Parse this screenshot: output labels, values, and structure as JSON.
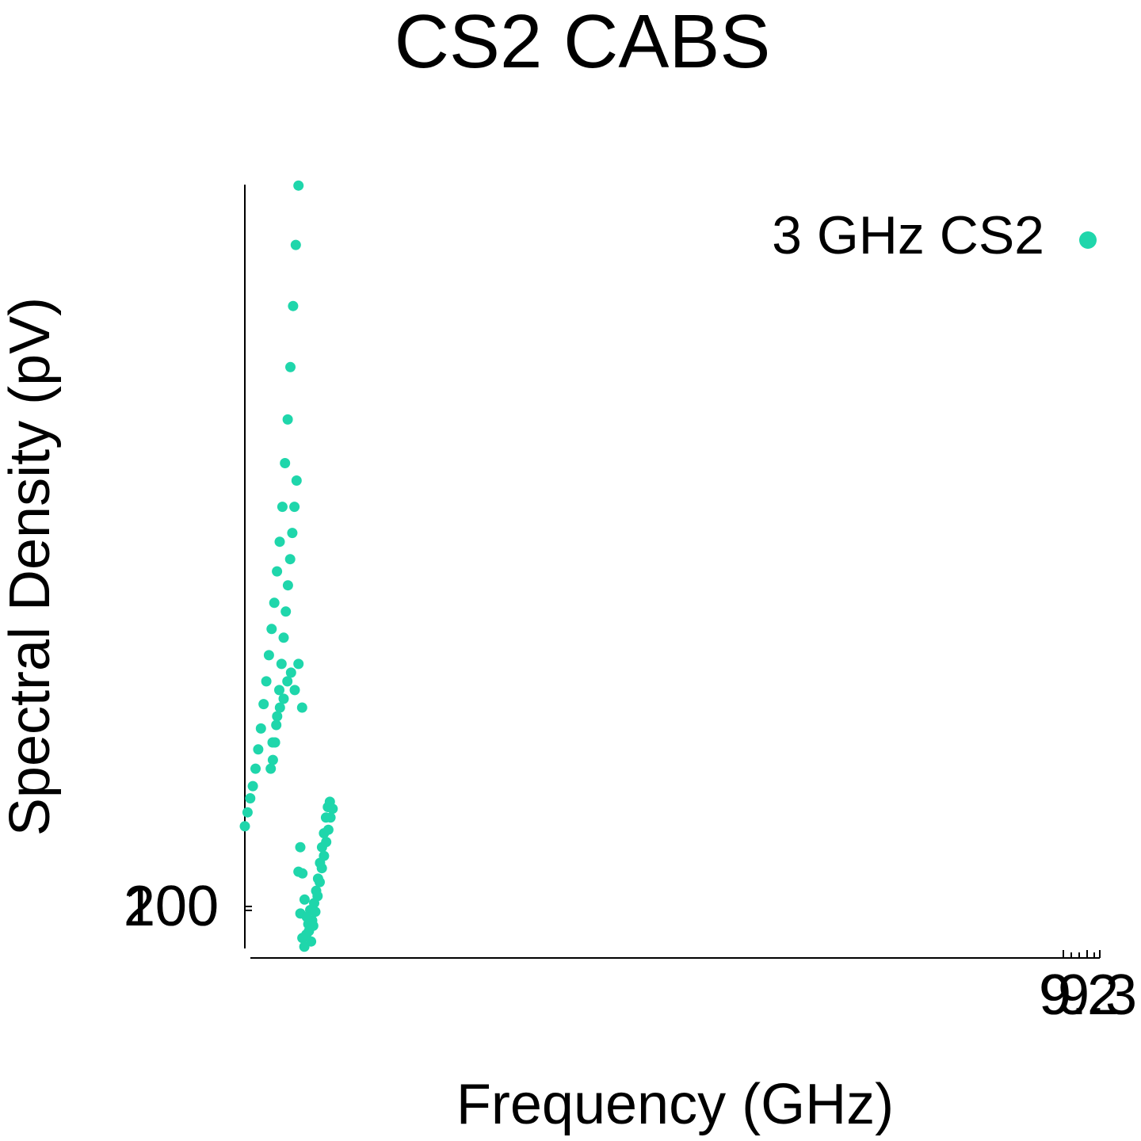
{
  "chart_data": {
    "type": "scatter",
    "title": "CS2 CABS",
    "xlabel": "Frequency (GHz)",
    "ylabel": "Spectral Density (pV)",
    "x_tick_labels": [
      "9",
      "9.2",
      "9.3"
    ],
    "y_tick_labels": [
      "100",
      "200"
    ],
    "legend": {
      "position": "top-right",
      "entries": [
        {
          "label": "3 GHz CS2",
          "color": "#1fd6ab"
        }
      ]
    },
    "xlim": [
      0.1,
      9.35
    ],
    "ylim": [
      120,
      4500
    ],
    "series": [
      {
        "name": "3 GHz CS2",
        "color": "#1fd6ab",
        "segments": [
          {
            "x_start": 0.1,
            "x_end": 0.68,
            "y_points": [
              820,
              900,
              980,
              1050,
              1150,
              1260,
              1380,
              1520,
              1650,
              1800,
              1950,
              2100,
              2280,
              2450,
              2650,
              2900,
              3150,
              3450,
              3800,
              4150,
              4490
            ]
          },
          {
            "x_start": 0.38,
            "x_end": 0.66,
            "y_points": [
              1150,
              1200,
              1300,
              1450,
              1600,
              1750,
              1900,
              2050,
              2200,
              2350,
              2500,
              2650,
              2800
            ]
          },
          {
            "x_start": 0.4,
            "x_end": 0.72,
            "y_points": [
              1300,
              1400,
              1500,
              1550,
              1650,
              1700,
              1600,
              1750,
              1500
            ]
          },
          {
            "x_start": 0.68,
            "x_end": 1.02,
            "y_points": [
              560,
              320,
              180,
              130,
              200,
              260,
              340,
              280,
              380,
              450,
              520,
              610,
              700,
              780,
              870,
              930,
              960
            ]
          },
          {
            "x_start": 0.7,
            "x_end": 1.05,
            "y_points": [
              700,
              550,
              400,
              300,
              220,
              160,
              250,
              330,
              420,
              500,
              580,
              650,
              730,
              800,
              870,
              920
            ]
          }
        ]
      }
    ]
  }
}
